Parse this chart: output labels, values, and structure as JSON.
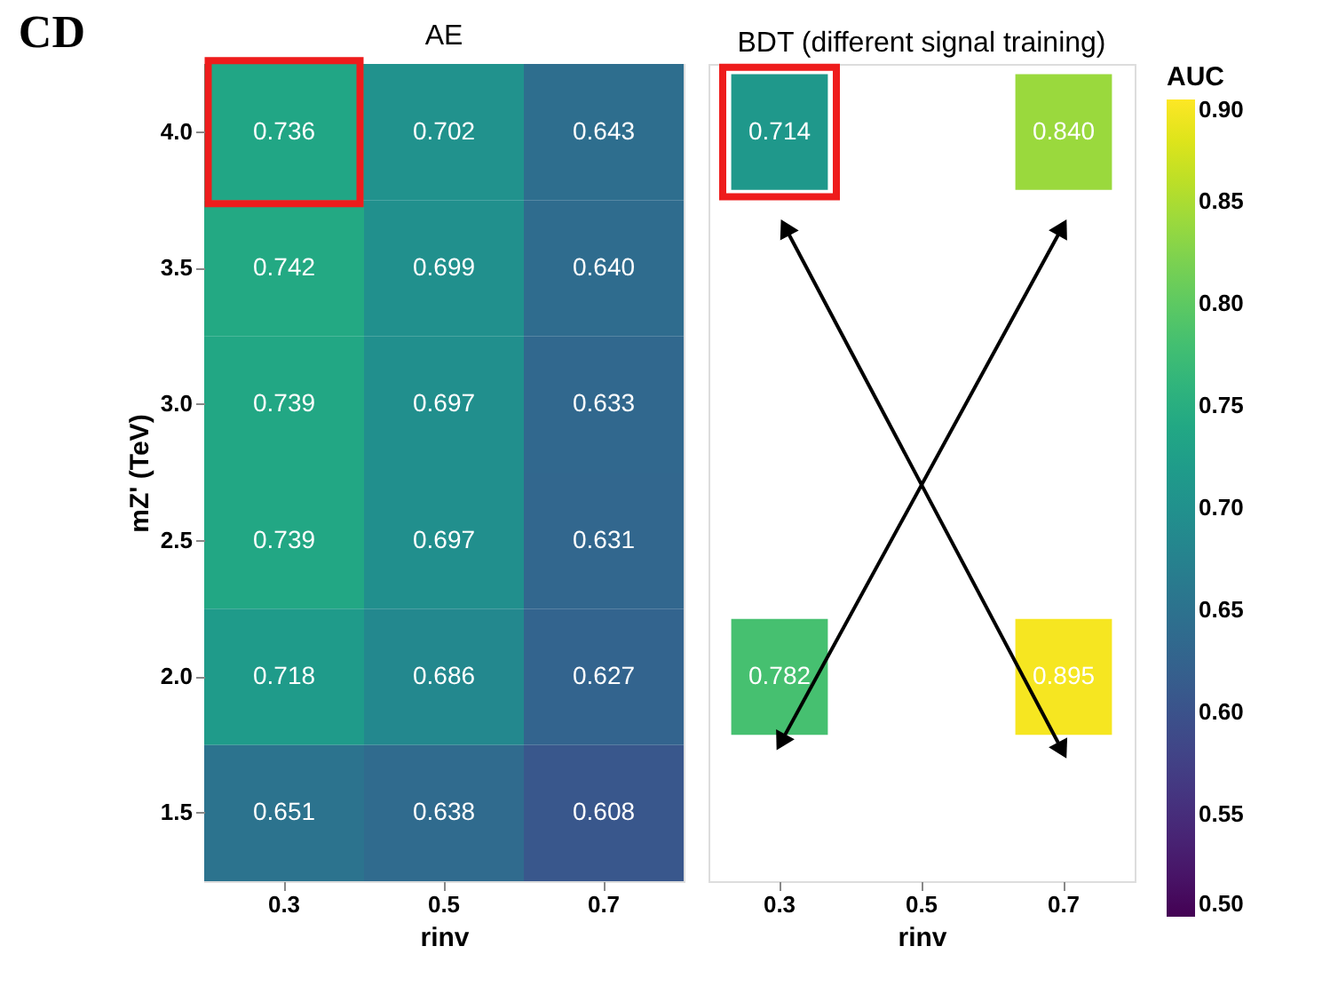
{
  "chart_data": [
    {
      "type": "heatmap",
      "title": "AE",
      "xlabel": "rinv",
      "ylabel": "mZ' (TeV)",
      "annotations": [
        "CD"
      ],
      "categories": [
        "0.3",
        "0.5",
        "0.7"
      ],
      "y_categories": [
        "4.0",
        "3.5",
        "3.0",
        "2.5",
        "2.0",
        "1.5"
      ],
      "cells": [
        [
          0.736,
          0.702,
          0.643
        ],
        [
          0.742,
          0.699,
          0.64
        ],
        [
          0.739,
          0.697,
          0.633
        ],
        [
          0.739,
          0.697,
          0.631
        ],
        [
          0.718,
          0.686,
          0.627
        ],
        [
          0.651,
          0.638,
          0.608
        ]
      ],
      "cell_labels": [
        [
          "0.736",
          "0.702",
          "0.643"
        ],
        [
          "0.742",
          "0.699",
          "0.640"
        ],
        [
          "0.739",
          "0.697",
          "0.633"
        ],
        [
          "0.739",
          "0.697",
          "0.631"
        ],
        [
          "0.718",
          "0.686",
          "0.627"
        ],
        [
          "0.651",
          "0.638",
          "0.608"
        ]
      ]
    },
    {
      "type": "heatmap",
      "title": "BDT (different signal training)",
      "xlabel": "rinv",
      "clabel": "AUC",
      "categories": [
        "0.3",
        "0.5",
        "0.7"
      ],
      "y_categories": [
        "4.0",
        "3.5",
        "3.0",
        "2.5",
        "2.0",
        "1.5"
      ],
      "cells": [
        [
          0.714,
          null,
          0.84
        ],
        [
          null,
          null,
          null
        ],
        [
          null,
          null,
          null
        ],
        [
          null,
          null,
          null
        ],
        [
          0.782,
          null,
          0.895
        ],
        [
          null,
          null,
          null
        ]
      ],
      "cell_labels": [
        [
          "0.714",
          null,
          "0.840"
        ],
        [
          null,
          null,
          null
        ],
        [
          null,
          null,
          null
        ],
        [
          null,
          null,
          null
        ],
        [
          "0.782",
          null,
          "0.895"
        ],
        [
          null,
          null,
          null
        ]
      ],
      "clim": [
        0.5,
        0.9
      ],
      "cticks": [
        {
          "value": 0.5,
          "label": "0.50"
        },
        0.55,
        {
          "value": 0.6,
          "label": "0.60"
        },
        0.65,
        {
          "value": 0.7,
          "label": "0.70"
        },
        0.75,
        {
          "value": 0.8,
          "label": "0.80"
        },
        0.85,
        {
          "value": 0.9,
          "label": "0.90"
        }
      ],
      "tick_labels": "x"
    }
  ]
}
